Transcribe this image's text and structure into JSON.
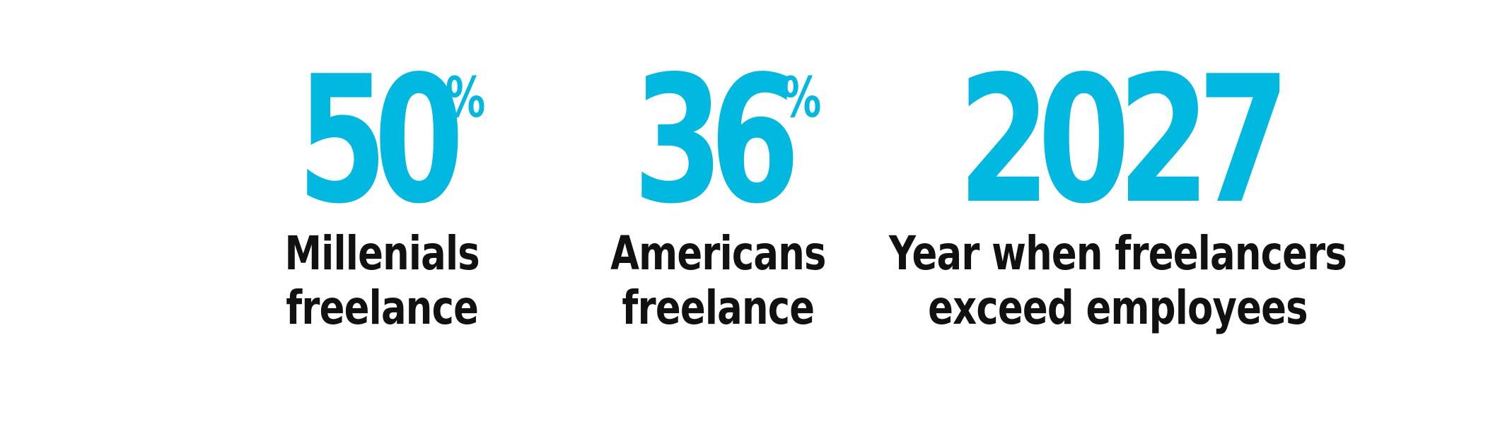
{
  "accent_color": "#00b8e0",
  "label_color": "#111111",
  "stats": [
    {
      "value": "50",
      "unit": "%",
      "label_lines": [
        "Millenials",
        "freelance"
      ]
    },
    {
      "value": "36",
      "unit": "%",
      "label_lines": [
        "Americans",
        "freelance"
      ]
    },
    {
      "value": "2027",
      "unit": "",
      "label_lines": [
        "Year when freelancers",
        "exceed employees"
      ]
    }
  ]
}
